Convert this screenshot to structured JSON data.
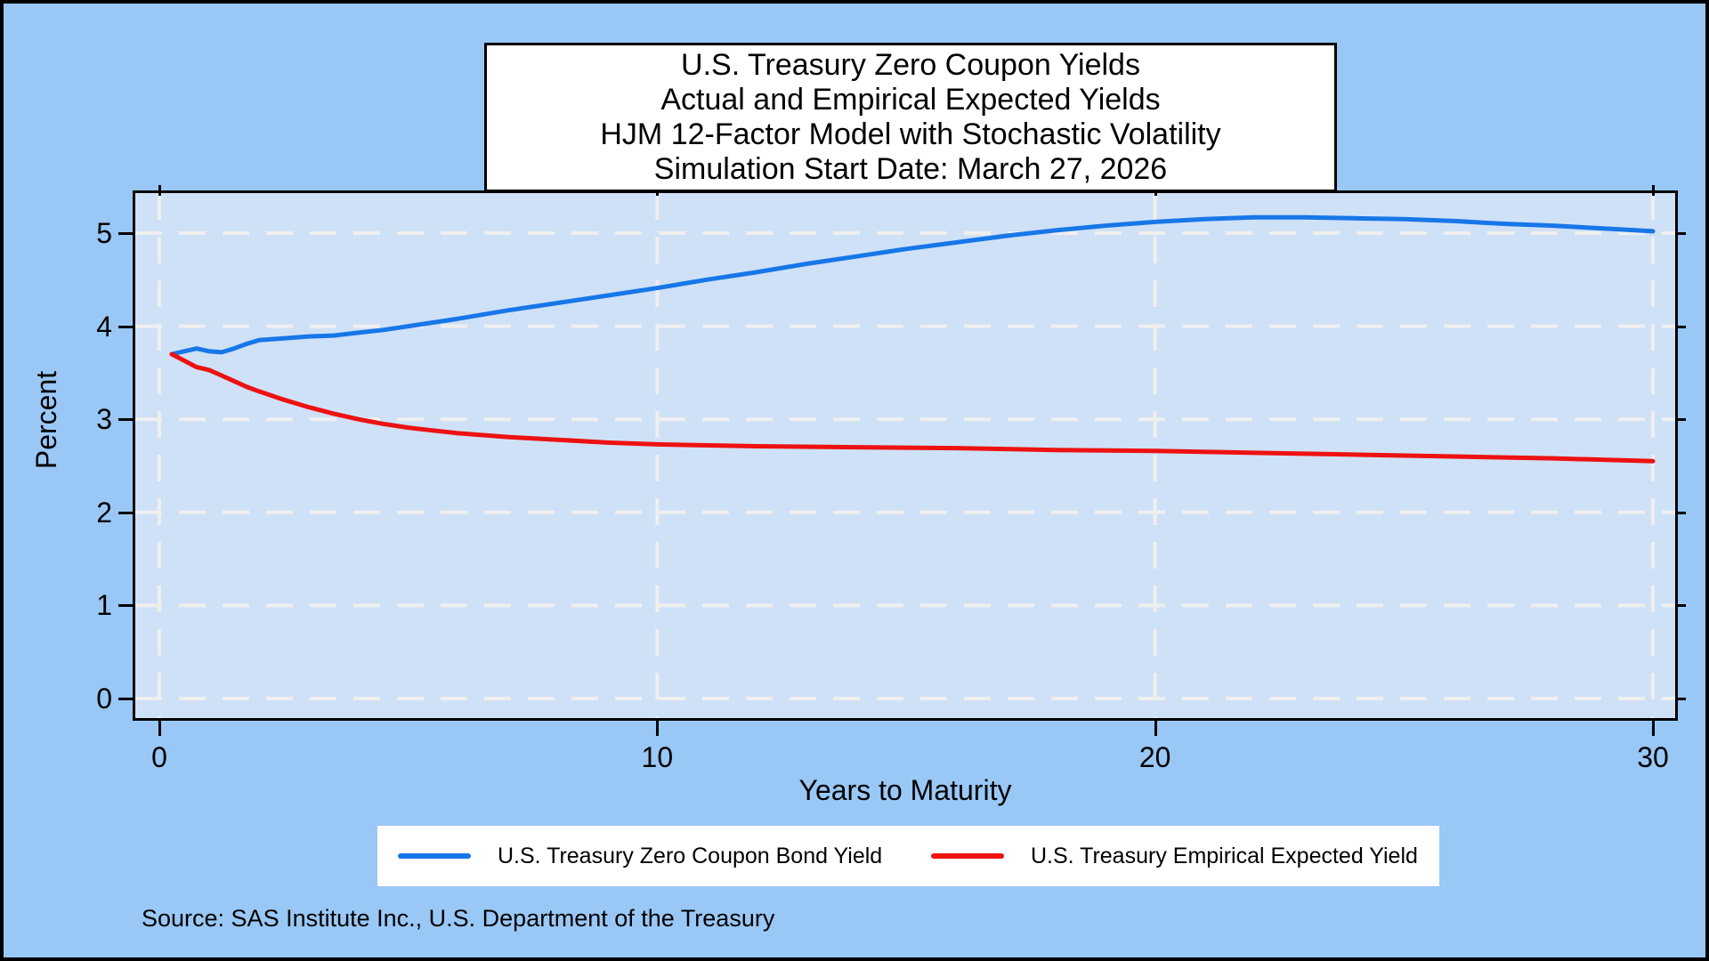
{
  "title": {
    "lines": [
      "U.S. Treasury Zero Coupon Yields",
      "Actual and Empirical Expected Yields",
      "HJM 12-Factor Model with Stochastic Volatility",
      "Simulation Start Date: March 27, 2026"
    ]
  },
  "chart_data": {
    "type": "line",
    "title": "U.S. Treasury Zero Coupon Yields, Actual and Empirical Expected Yields",
    "xlabel": "Years to Maturity",
    "ylabel": "Percent",
    "xlim": [
      0,
      30
    ],
    "ylim": [
      0,
      5
    ],
    "xticks": [
      0,
      10,
      20,
      30
    ],
    "yticks": [
      0,
      1,
      2,
      3,
      4,
      5
    ],
    "grid": "white dashed gridlines at every x and y tick",
    "legend_position": "bottom",
    "series": [
      {
        "name": "U.S. Treasury Zero Coupon Bond Yield",
        "color": "#1777e8",
        "x": [
          0.25,
          0.5,
          0.75,
          1,
          1.25,
          1.5,
          1.75,
          2,
          2.25,
          2.5,
          3,
          3.5,
          4,
          4.5,
          5,
          6,
          7,
          8,
          9,
          10,
          11,
          12,
          13,
          14,
          15,
          16,
          17,
          18,
          19,
          20,
          21,
          22,
          23,
          24,
          25,
          26,
          27,
          28,
          29,
          30
        ],
        "y": [
          3.7,
          3.73,
          3.76,
          3.73,
          3.72,
          3.76,
          3.81,
          3.85,
          3.86,
          3.87,
          3.89,
          3.9,
          3.93,
          3.96,
          4.0,
          4.08,
          4.17,
          4.25,
          4.33,
          4.41,
          4.5,
          4.58,
          4.67,
          4.75,
          4.83,
          4.9,
          4.97,
          5.03,
          5.08,
          5.12,
          5.15,
          5.17,
          5.17,
          5.16,
          5.15,
          5.13,
          5.1,
          5.08,
          5.05,
          5.02
        ]
      },
      {
        "name": "U.S. Treasury Empirical Expected Yield",
        "color": "#ee1111",
        "x": [
          0.25,
          0.5,
          0.75,
          1,
          1.25,
          1.5,
          1.75,
          2,
          2.5,
          3,
          3.5,
          4,
          4.5,
          5,
          5.5,
          6,
          7,
          8,
          9,
          10,
          12,
          14,
          16,
          18,
          20,
          22,
          24,
          26,
          28,
          30
        ],
        "y": [
          3.7,
          3.63,
          3.56,
          3.53,
          3.47,
          3.41,
          3.35,
          3.3,
          3.21,
          3.13,
          3.06,
          3.0,
          2.95,
          2.91,
          2.88,
          2.85,
          2.81,
          2.78,
          2.75,
          2.73,
          2.71,
          2.7,
          2.69,
          2.67,
          2.66,
          2.64,
          2.62,
          2.6,
          2.58,
          2.55
        ]
      }
    ]
  },
  "source_note": "Source: SAS Institute Inc., U.S. Department of the Treasury",
  "colors": {
    "canvas_bg": "#9ac8f6",
    "plot_bg": "#cfe1f7",
    "grid": "#efefef",
    "frame": "#000000",
    "title_box_bg": "#ffffff",
    "legend_bg": "#ffffff",
    "text": "#000000"
  }
}
